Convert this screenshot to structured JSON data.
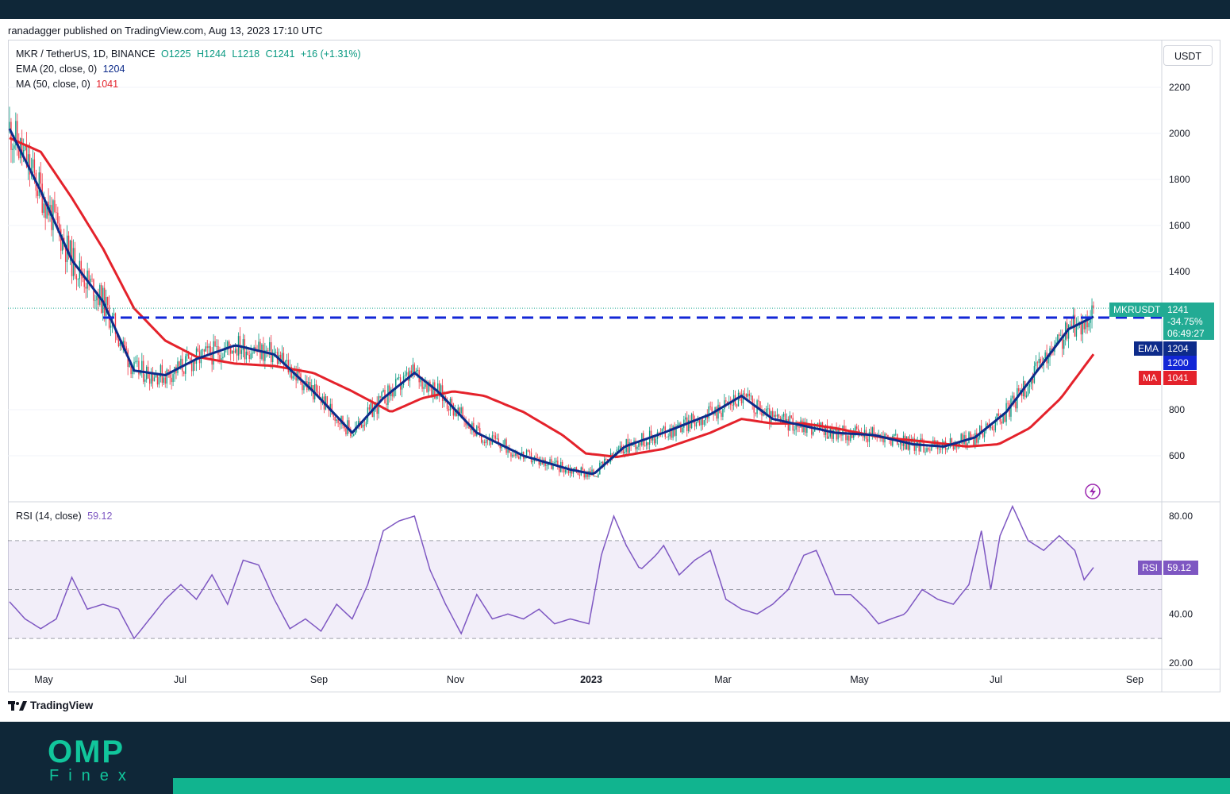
{
  "header": {
    "published_by": "ranadagger published on TradingView.com, Aug 13, 2023 17:10 UTC"
  },
  "legend": {
    "symbol": "MKR / TetherUS, 1D, BINANCE",
    "open": "O1225",
    "high": "H1244",
    "low": "L1218",
    "close": "C1241",
    "change": "+16 (+1.31%)",
    "ema_label": "EMA (20, close, 0)",
    "ema_value": "1204",
    "ma_label": "MA (50, close, 0)",
    "ma_value": "1041",
    "rsi_label": "RSI (14, close)",
    "rsi_value": "59.12"
  },
  "currency_button": "USDT",
  "price_axis": {
    "ticks": [
      "2200",
      "2000",
      "1800",
      "1600",
      "1400",
      "800",
      "600"
    ]
  },
  "rsi_axis": {
    "ticks": [
      "80.00",
      "40.00",
      "20.00"
    ]
  },
  "time_axis": {
    "ticks": [
      "May",
      "Jul",
      "Sep",
      "Nov",
      "2023",
      "Mar",
      "May",
      "Jul",
      "Sep"
    ]
  },
  "tags": {
    "symbol_tag": "MKRUSDT",
    "price_tag": "1241",
    "change_tag": "-34.75%",
    "countdown_tag": "06:49:27",
    "ema_name": "EMA",
    "ema_tag": "1204",
    "support_tag": "1200",
    "ma_name": "MA",
    "ma_tag": "1041",
    "rsi_name": "RSI",
    "rsi_tag": "59.12"
  },
  "branding": {
    "tradingview": "TradingView",
    "logo_main": "OMP",
    "logo_sub": "Finex"
  },
  "colors": {
    "up_candle": "#089981",
    "down_candle": "#f23645",
    "ema": "#0d2b8a",
    "ma": "#e4222b",
    "support_line": "#1226d6",
    "rsi": "#7e57c2",
    "rsi_band": "#7e57c2",
    "price_tag": "#22ab94"
  },
  "chart_data": {
    "type": "candlestick",
    "title": "MKR / TetherUS, 1D, BINANCE",
    "price_ticks": [
      2200,
      2000,
      1800,
      1600,
      1400,
      800,
      600
    ],
    "support_level": 1200,
    "last_close": 1241,
    "rsi_levels": [
      70,
      50,
      30
    ],
    "ema20_key_points": [
      [
        0,
        2020
      ],
      [
        20,
        1750
      ],
      [
        40,
        1450
      ],
      [
        60,
        1270
      ],
      [
        80,
        970
      ],
      [
        100,
        950
      ],
      [
        120,
        1020
      ],
      [
        145,
        1080
      ],
      [
        170,
        1040
      ],
      [
        195,
        880
      ],
      [
        220,
        700
      ],
      [
        240,
        850
      ],
      [
        260,
        960
      ],
      [
        275,
        880
      ],
      [
        300,
        700
      ],
      [
        330,
        600
      ],
      [
        360,
        540
      ],
      [
        375,
        520
      ],
      [
        395,
        640
      ],
      [
        420,
        700
      ],
      [
        450,
        780
      ],
      [
        470,
        860
      ],
      [
        490,
        760
      ],
      [
        510,
        730
      ],
      [
        530,
        700
      ],
      [
        555,
        690
      ],
      [
        580,
        650
      ],
      [
        600,
        640
      ],
      [
        620,
        680
      ],
      [
        640,
        790
      ],
      [
        660,
        970
      ],
      [
        680,
        1150
      ],
      [
        696,
        1204
      ]
    ],
    "ma50_key_points": [
      [
        0,
        1980
      ],
      [
        20,
        1920
      ],
      [
        40,
        1720
      ],
      [
        60,
        1500
      ],
      [
        80,
        1240
      ],
      [
        100,
        1100
      ],
      [
        120,
        1030
      ],
      [
        145,
        1000
      ],
      [
        170,
        990
      ],
      [
        195,
        960
      ],
      [
        220,
        880
      ],
      [
        245,
        790
      ],
      [
        265,
        850
      ],
      [
        285,
        880
      ],
      [
        305,
        860
      ],
      [
        330,
        790
      ],
      [
        355,
        690
      ],
      [
        370,
        610
      ],
      [
        390,
        595
      ],
      [
        420,
        630
      ],
      [
        450,
        700
      ],
      [
        470,
        760
      ],
      [
        490,
        740
      ],
      [
        510,
        740
      ],
      [
        530,
        720
      ],
      [
        560,
        680
      ],
      [
        590,
        660
      ],
      [
        615,
        640
      ],
      [
        635,
        650
      ],
      [
        655,
        720
      ],
      [
        675,
        850
      ],
      [
        696,
        1041
      ]
    ],
    "rsi_key_points": [
      [
        0,
        45
      ],
      [
        10,
        38
      ],
      [
        20,
        34
      ],
      [
        30,
        38
      ],
      [
        40,
        55
      ],
      [
        50,
        42
      ],
      [
        60,
        44
      ],
      [
        70,
        42
      ],
      [
        80,
        30
      ],
      [
        90,
        38
      ],
      [
        100,
        46
      ],
      [
        110,
        52
      ],
      [
        120,
        46
      ],
      [
        130,
        56
      ],
      [
        140,
        44
      ],
      [
        150,
        62
      ],
      [
        160,
        60
      ],
      [
        170,
        46
      ],
      [
        180,
        34
      ],
      [
        190,
        38
      ],
      [
        200,
        33
      ],
      [
        210,
        44
      ],
      [
        220,
        38
      ],
      [
        230,
        52
      ],
      [
        240,
        74
      ],
      [
        250,
        78
      ],
      [
        260,
        80
      ],
      [
        270,
        58
      ],
      [
        280,
        44
      ],
      [
        290,
        32
      ],
      [
        300,
        48
      ],
      [
        310,
        38
      ],
      [
        320,
        40
      ],
      [
        330,
        38
      ],
      [
        340,
        42
      ],
      [
        350,
        36
      ],
      [
        360,
        38
      ],
      [
        372,
        36
      ],
      [
        380,
        64
      ],
      [
        388,
        80
      ],
      [
        396,
        68
      ],
      [
        405,
        58
      ],
      [
        415,
        64
      ],
      [
        420,
        68
      ],
      [
        430,
        56
      ],
      [
        440,
        62
      ],
      [
        450,
        66
      ],
      [
        460,
        46
      ],
      [
        470,
        42
      ],
      [
        480,
        40
      ],
      [
        490,
        44
      ],
      [
        500,
        50
      ],
      [
        510,
        64
      ],
      [
        518,
        66
      ],
      [
        530,
        48
      ],
      [
        540,
        48
      ],
      [
        550,
        42
      ],
      [
        558,
        36
      ],
      [
        566,
        38
      ],
      [
        575,
        40
      ],
      [
        586,
        50
      ],
      [
        596,
        46
      ],
      [
        606,
        44
      ],
      [
        616,
        52
      ],
      [
        624,
        74
      ],
      [
        630,
        50
      ],
      [
        636,
        72
      ],
      [
        644,
        84
      ],
      [
        654,
        70
      ],
      [
        664,
        66
      ],
      [
        674,
        72
      ],
      [
        684,
        66
      ],
      [
        690,
        54
      ],
      [
        696,
        59
      ]
    ]
  }
}
